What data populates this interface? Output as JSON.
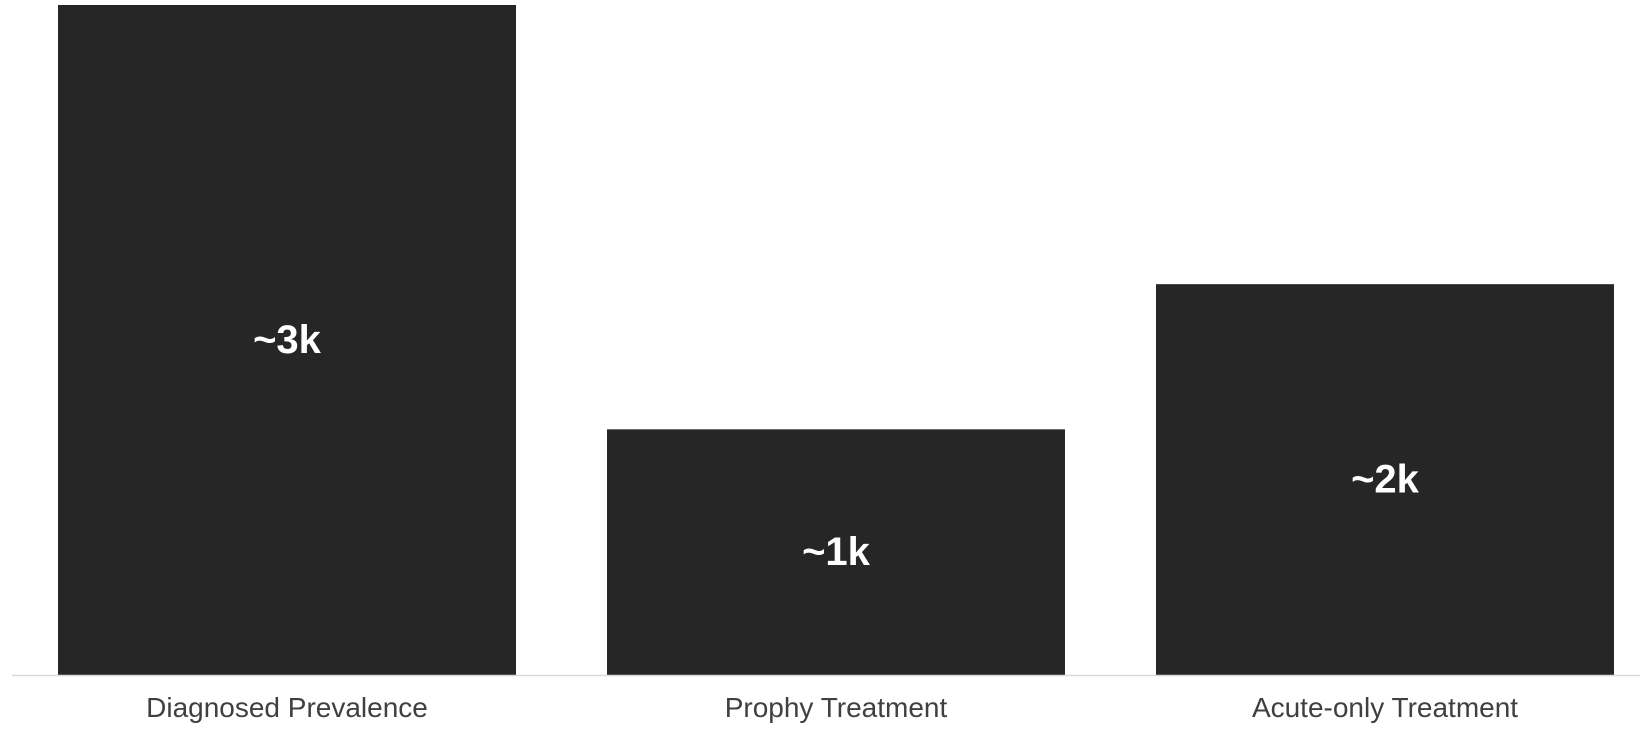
{
  "chart_data": {
    "type": "bar",
    "categories": [
      "Diagnosed Prevalence",
      "Prophy Treatment",
      "Acute-only Treatment"
    ],
    "values": [
      3,
      1.1,
      1.75
    ],
    "data_labels": [
      "~3k",
      "~1k",
      "~2k"
    ],
    "title": "",
    "xlabel": "",
    "ylabel": "",
    "ylim": [
      0,
      3
    ],
    "grid": false,
    "legend": "none"
  },
  "colors": {
    "bar": "#262626",
    "bar_label": "#ffffff",
    "axis": "#d9d9d9",
    "category_text": "#404040",
    "background": "#ffffff"
  }
}
